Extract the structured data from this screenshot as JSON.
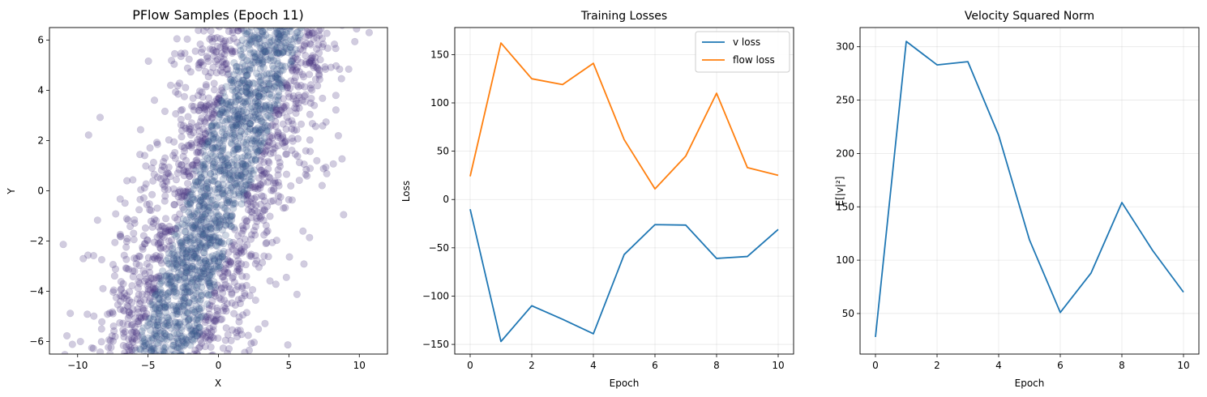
{
  "chart_data": [
    {
      "type": "scatter",
      "title": "PFlow Samples (Epoch 11)",
      "xlabel": "X",
      "ylabel": "Y",
      "xlim": [
        -12,
        12
      ],
      "ylim": [
        -6.5,
        6.5
      ],
      "xticks": [
        "−10",
        "−5",
        "0",
        "5",
        "10"
      ],
      "yticks": [
        "−6",
        "−4",
        "−2",
        "0",
        "2",
        "4",
        "6"
      ],
      "grid": false,
      "point_color": "#46327e",
      "point_alpha": 0.25,
      "density_color": "#365c8d",
      "band": {
        "slope": 1.65,
        "width": 6.0,
        "center_x": 0.0
      },
      "outliers": [
        [
          -9.6,
          -2.7
        ],
        [
          -9.8,
          -6.0
        ],
        [
          10.7,
          6.3
        ],
        [
          -8.3,
          -5.5
        ],
        [
          6.8,
          3.4
        ],
        [
          -6.9,
          -3.9
        ]
      ]
    },
    {
      "type": "line",
      "title": "Training Losses",
      "xlabel": "Epoch",
      "ylabel": "Loss",
      "xlim": [
        -0.5,
        10.5
      ],
      "ylim": [
        -160,
        178
      ],
      "xticks": [
        "0",
        "2",
        "4",
        "6",
        "8",
        "10"
      ],
      "yticks": [
        "−150",
        "−100",
        "−50",
        "0",
        "50",
        "100",
        "150"
      ],
      "ytick_values": [
        -150,
        -100,
        -50,
        0,
        50,
        100,
        150
      ],
      "grid": true,
      "legend": "top-right",
      "x": [
        0,
        1,
        2,
        3,
        4,
        5,
        6,
        7,
        8,
        9,
        10
      ],
      "series": [
        {
          "name": "v loss",
          "color": "#1f77b4",
          "values": [
            -10,
            -147,
            -110,
            -124,
            -139,
            -57,
            -26,
            -26.5,
            -61,
            -59,
            -31
          ]
        },
        {
          "name": "flow loss",
          "color": "#ff7f0e",
          "values": [
            24,
            162,
            125,
            119,
            141,
            62,
            11,
            45,
            110,
            33,
            25
          ]
        }
      ]
    },
    {
      "type": "line",
      "title": "Velocity Squared Norm",
      "xlabel": "Epoch",
      "ylabel": "E[|v|²]",
      "xlim": [
        -0.5,
        10.5
      ],
      "ylim": [
        12,
        318
      ],
      "xticks": [
        "0",
        "2",
        "4",
        "6",
        "8",
        "10"
      ],
      "yticks": [
        "50",
        "100",
        "150",
        "200",
        "250",
        "300"
      ],
      "ytick_values": [
        50,
        100,
        150,
        200,
        250,
        300
      ],
      "grid": true,
      "x": [
        0,
        1,
        2,
        3,
        4,
        5,
        6,
        7,
        8,
        9,
        10
      ],
      "series": [
        {
          "color": "#1f77b4",
          "values": [
            28,
            305,
            283,
            286,
            217,
            119,
            51,
            88,
            154,
            109,
            70
          ]
        }
      ]
    }
  ]
}
